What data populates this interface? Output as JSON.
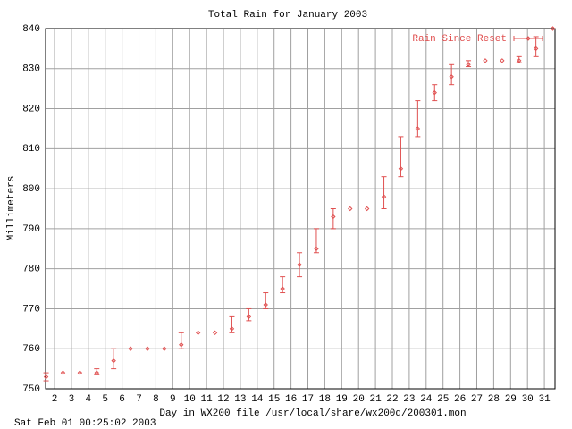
{
  "chart_data": {
    "type": "errorbar",
    "title": "Total Rain for January 2003",
    "xlabel": "Day in WX200 file /usr/local/share/wx200d/200301.mon",
    "ylabel": "Millimeters",
    "timestamp": "Sat Feb 01 00:25:02 2003",
    "legend": "top-right",
    "grid": true,
    "xlim": [
      1.47,
      31.63
    ],
    "ylim": [
      750,
      840
    ],
    "xticks": [
      2,
      3,
      4,
      5,
      6,
      7,
      8,
      9,
      10,
      11,
      12,
      13,
      14,
      15,
      16,
      17,
      18,
      19,
      20,
      21,
      22,
      23,
      24,
      25,
      26,
      27,
      28,
      29,
      30,
      31
    ],
    "yticks": [
      750,
      760,
      770,
      780,
      790,
      800,
      810,
      820,
      830,
      840
    ],
    "series": [
      {
        "name": "Rain Since Reset",
        "color": "#e05050",
        "x": [
          1.5,
          2.5,
          3.5,
          4.5,
          5.5,
          6.5,
          7.5,
          8.5,
          9.5,
          10.5,
          11.5,
          12.5,
          13.5,
          14.5,
          15.5,
          16.5,
          17.5,
          18.5,
          19.5,
          20.5,
          21.5,
          22.5,
          23.5,
          24.5,
          25.5,
          26.5,
          27.5,
          28.5,
          29.5,
          30.5,
          31.5
        ],
        "values": [
          753,
          754,
          754,
          754,
          757,
          760,
          760,
          760,
          761,
          764,
          764,
          765,
          768,
          771,
          775,
          781,
          785,
          793,
          795,
          795,
          798,
          805,
          815,
          824,
          828,
          831,
          832,
          832,
          832,
          835,
          840
        ],
        "low": [
          752,
          null,
          null,
          753.5,
          755,
          null,
          null,
          null,
          760,
          null,
          null,
          764,
          767,
          770,
          774,
          778,
          784,
          790,
          null,
          null,
          795,
          803,
          813,
          822,
          826,
          830.5,
          null,
          null,
          831.5,
          833,
          null
        ],
        "high": [
          754,
          null,
          null,
          755,
          760,
          null,
          null,
          null,
          764,
          null,
          null,
          768,
          770,
          774,
          778,
          784,
          790,
          795,
          null,
          null,
          803,
          813,
          822,
          826,
          831,
          832,
          null,
          null,
          833,
          838,
          null
        ]
      }
    ]
  }
}
